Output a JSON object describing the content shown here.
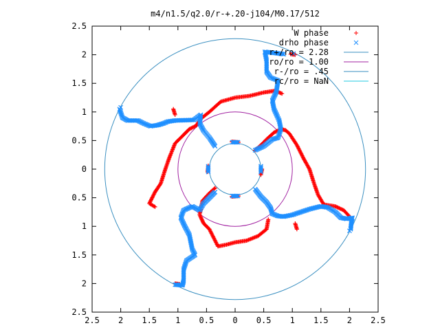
{
  "chart_data": {
    "type": "scatter",
    "title": "m4/n1.5/q2.0/r-+.20-j104/M0.17/512",
    "xlabel": "",
    "ylabel": "",
    "xlim": [
      -2.5,
      2.5
    ],
    "ylim": [
      -2.5,
      2.5
    ],
    "x_ticks": [
      "2.5",
      "2",
      "1.5",
      "1",
      "0.5",
      "0",
      "0.5",
      "1",
      "1.5",
      "2",
      "2.5"
    ],
    "y_ticks": [
      "2.5",
      "2",
      "1.5",
      "1",
      "0.5",
      "0",
      "0.5",
      "1",
      "1.5",
      "2",
      "2.5"
    ],
    "grid": false,
    "legend_position": "top-right",
    "colors": {
      "w_phase": "#ff0000",
      "drho_phase": "#1e8fff",
      "rplus": "#3a8fc0",
      "ro": "#a020a0",
      "rminus": "#3a8fc0",
      "rc": "#22c8e0"
    },
    "legend": [
      {
        "label": "W phase",
        "marker": "+",
        "color": "#ff0000"
      },
      {
        "label": "drho phase",
        "marker": "x",
        "color": "#1e8fff"
      },
      {
        "label": "r+/ro = 2.28",
        "marker": "line",
        "color": "#3a8fc0"
      },
      {
        "label": "ro/ro = 1.00",
        "marker": "line",
        "color": "#a020a0"
      },
      {
        "label": "r-/ro = .45",
        "marker": "line",
        "color": "#3a8fc0"
      },
      {
        "label": "rc/ro = NaN",
        "marker": "line",
        "color": "#22c8e0"
      }
    ],
    "circles": [
      {
        "name": "r+/ro = 2.28",
        "radius": 2.28
      },
      {
        "name": "ro/ro = 1.00",
        "radius": 1.0
      },
      {
        "name": "r-/ro = .45",
        "radius": 0.45
      }
    ],
    "series": [
      {
        "name": "W phase",
        "marker": "+",
        "points": [
          [
            0.35,
            0.33
          ],
          [
            0.45,
            0.42
          ],
          [
            0.57,
            0.54
          ],
          [
            0.68,
            0.64
          ],
          [
            0.8,
            0.7
          ],
          [
            0.88,
            0.68
          ],
          [
            0.95,
            0.62
          ],
          [
            1.08,
            0.42
          ],
          [
            1.2,
            0.18
          ],
          [
            1.3,
            0.0
          ],
          [
            1.38,
            -0.25
          ],
          [
            1.45,
            -0.45
          ],
          [
            1.55,
            -0.62
          ],
          [
            1.75,
            -0.65
          ],
          [
            1.9,
            -0.72
          ],
          [
            2.02,
            -0.85
          ],
          [
            0.45,
            -0.1
          ],
          [
            0.47,
            0.0
          ],
          [
            0.06,
            0.47
          ],
          [
            -0.06,
            0.48
          ],
          [
            -0.47,
            0.06
          ],
          [
            -0.48,
            -0.05
          ],
          [
            0.06,
            -0.47
          ],
          [
            -0.06,
            -0.48
          ],
          [
            0.82,
            1.32
          ],
          [
            0.7,
            1.37
          ],
          [
            0.5,
            1.34
          ],
          [
            0.25,
            1.28
          ],
          [
            0.0,
            1.25
          ],
          [
            -0.25,
            1.18
          ],
          [
            -0.45,
            1.0
          ],
          [
            -0.6,
            0.88
          ],
          [
            -0.68,
            0.76
          ],
          [
            -0.8,
            0.7
          ],
          [
            -0.9,
            0.6
          ],
          [
            -1.05,
            0.45
          ],
          [
            -1.15,
            0.2
          ],
          [
            -1.22,
            0.0
          ],
          [
            -1.3,
            -0.25
          ],
          [
            -1.4,
            -0.4
          ],
          [
            -1.5,
            -0.6
          ],
          [
            -1.4,
            -0.66
          ],
          [
            -0.35,
            -0.33
          ],
          [
            -0.45,
            -0.42
          ],
          [
            -0.57,
            -0.55
          ],
          [
            -0.62,
            -0.8
          ],
          [
            -0.55,
            -0.95
          ],
          [
            -0.45,
            -1.05
          ],
          [
            -0.3,
            -1.35
          ],
          [
            -0.15,
            -1.32
          ],
          [
            0.0,
            -1.28
          ],
          [
            0.2,
            -1.25
          ],
          [
            0.4,
            -1.17
          ],
          [
            0.55,
            -1.05
          ],
          [
            0.58,
            -0.88
          ],
          [
            -1.05,
            0.95
          ],
          [
            -1.08,
            1.05
          ],
          [
            1.05,
            -0.95
          ],
          [
            1.08,
            -1.05
          ],
          [
            -0.97,
            -2.01
          ],
          [
            -1.05,
            -2.0
          ],
          [
            0.97,
            2.01
          ],
          [
            1.05,
            2.0
          ]
        ]
      },
      {
        "name": "drho phase",
        "marker": "x",
        "points": [
          [
            0.35,
            0.33
          ],
          [
            0.5,
            0.4
          ],
          [
            0.65,
            0.52
          ],
          [
            0.75,
            0.55
          ],
          [
            0.8,
            0.7
          ],
          [
            0.77,
            0.85
          ],
          [
            0.68,
            1.05
          ],
          [
            0.65,
            1.2
          ],
          [
            0.72,
            1.35
          ],
          [
            0.75,
            1.55
          ],
          [
            0.62,
            1.6
          ],
          [
            0.55,
            1.7
          ],
          [
            0.55,
            1.9
          ],
          [
            0.52,
            2.05
          ],
          [
            0.7,
            2.03
          ],
          [
            0.85,
            2.01
          ],
          [
            -0.35,
            0.4
          ],
          [
            -0.45,
            0.55
          ],
          [
            -0.55,
            0.67
          ],
          [
            -0.62,
            0.8
          ],
          [
            -0.6,
            0.95
          ],
          [
            -0.72,
            0.86
          ],
          [
            -1.05,
            0.85
          ],
          [
            -1.18,
            0.83
          ],
          [
            -1.25,
            0.8
          ],
          [
            -1.35,
            0.77
          ],
          [
            -1.48,
            0.75
          ],
          [
            -1.6,
            0.8
          ],
          [
            -1.7,
            0.85
          ],
          [
            -1.88,
            0.85
          ],
          [
            -1.97,
            0.9
          ],
          [
            -2.02,
            1.05
          ],
          [
            -0.35,
            -0.4
          ],
          [
            -0.45,
            -0.5
          ],
          [
            -0.55,
            -0.6
          ],
          [
            -0.62,
            -0.72
          ],
          [
            -0.75,
            -0.65
          ],
          [
            -0.9,
            -0.72
          ],
          [
            -0.95,
            -0.85
          ],
          [
            -0.88,
            -1.0
          ],
          [
            -0.8,
            -1.15
          ],
          [
            -0.75,
            -1.4
          ],
          [
            -0.7,
            -1.5
          ],
          [
            -0.85,
            -1.6
          ],
          [
            -0.9,
            -1.75
          ],
          [
            -0.9,
            -1.95
          ],
          [
            -0.92,
            -2.03
          ],
          [
            -1.05,
            -2.02
          ],
          [
            0.35,
            -0.35
          ],
          [
            0.45,
            -0.48
          ],
          [
            0.55,
            -0.58
          ],
          [
            0.62,
            -0.68
          ],
          [
            0.65,
            -0.78
          ],
          [
            0.75,
            -0.82
          ],
          [
            0.85,
            -0.83
          ],
          [
            1.0,
            -0.8
          ],
          [
            1.15,
            -0.75
          ],
          [
            1.3,
            -0.7
          ],
          [
            1.5,
            -0.65
          ],
          [
            1.62,
            -0.67
          ],
          [
            1.75,
            -0.75
          ],
          [
            1.85,
            -0.85
          ],
          [
            1.95,
            -0.87
          ],
          [
            2.05,
            -0.85
          ],
          [
            2.03,
            -0.95
          ],
          [
            2.02,
            -1.05
          ],
          [
            0.45,
            -0.05
          ],
          [
            0.45,
            0.05
          ],
          [
            0.05,
            0.47
          ],
          [
            -0.05,
            0.47
          ],
          [
            -0.47,
            0.05
          ],
          [
            -0.47,
            -0.05
          ],
          [
            0.05,
            -0.47
          ],
          [
            -0.05,
            -0.47
          ],
          [
            -2.0,
            1.08
          ],
          [
            2.0,
            -1.08
          ],
          [
            -1.02,
            -2.02
          ],
          [
            1.02,
            2.02
          ]
        ]
      }
    ]
  }
}
